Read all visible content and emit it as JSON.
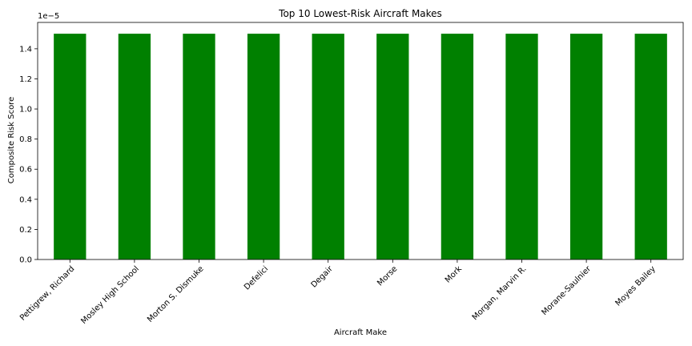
{
  "chart_data": {
    "type": "bar",
    "title": "Top 10 Lowest-Risk Aircraft Makes",
    "xlabel": "Aircraft Make",
    "ylabel": "Composite Risk Score",
    "y_offset_label": "1e−5",
    "categories": [
      "Pettigrew, Richard",
      "Mosley High School",
      "Morton S. Dismuke",
      "Defelici",
      "Degair",
      "Morse",
      "Mork",
      "Morgan, Marvin R.",
      "Morane-Saulnier",
      "Moyes Bailey"
    ],
    "values": [
      1.5,
      1.5,
      1.5,
      1.5,
      1.5,
      1.5,
      1.5,
      1.5,
      1.5,
      1.5
    ],
    "y_ticks": [
      "0.0",
      "0.2",
      "0.4",
      "0.6",
      "0.8",
      "1.0",
      "1.2",
      "1.4"
    ],
    "ylim": [
      0,
      1.575
    ],
    "grid": false,
    "legend": "none",
    "bar_color": "#008000"
  }
}
